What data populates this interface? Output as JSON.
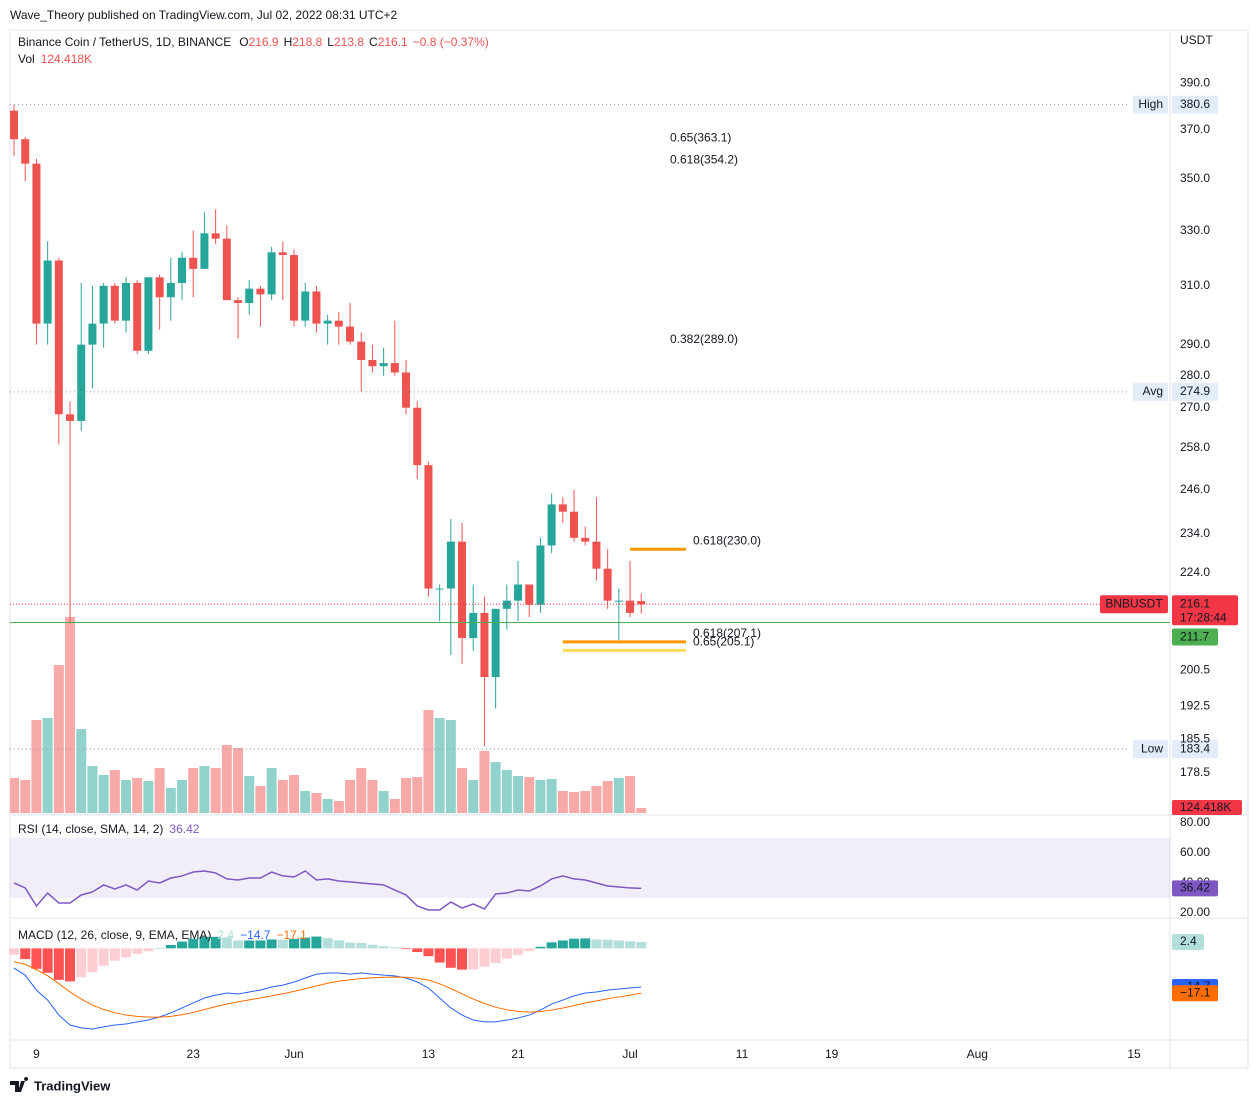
{
  "header": {
    "published": "Wave_Theory published on TradingView.com, Jul 02, 2022 08:31 UTC+2",
    "footer": "TradingView"
  },
  "chart_data": {
    "type": "candlestick",
    "title": "Binance Coin / TetherUS, 1D, BINANCE",
    "ohlc_labels": [
      "O",
      "H",
      "L",
      "C"
    ],
    "change": "−0.8 (−0.37%)",
    "currency": "USDT",
    "log_scale": true,
    "colors": {
      "up": "#26a69a",
      "down": "#ef5350",
      "up_volume": "#92d2cc",
      "down_volume": "#f7a9a7"
    },
    "xlim": [
      -0.36,
      103.21
    ],
    "xticks": [
      {
        "value": 2,
        "label": "9"
      },
      {
        "value": 16,
        "label": "23"
      },
      {
        "value": 25,
        "label": "Jun"
      },
      {
        "value": 37,
        "label": "13"
      },
      {
        "value": 45,
        "label": "21"
      },
      {
        "value": 55,
        "label": "Jul"
      },
      {
        "value": 65,
        "label": "11"
      },
      {
        "value": 73,
        "label": "19"
      },
      {
        "value": 86,
        "label": "Aug"
      },
      {
        "value": 100,
        "label": "15"
      }
    ],
    "ylim": [
      170.6,
      414.2
    ],
    "yticks": [
      {
        "value": 390,
        "label": "390.0"
      },
      {
        "value": 370,
        "label": "370.0"
      },
      {
        "value": 350,
        "label": "350.0"
      },
      {
        "value": 330,
        "label": "330.0"
      },
      {
        "value": 310,
        "label": "310.0"
      },
      {
        "value": 290,
        "label": "290.0"
      },
      {
        "value": 280,
        "label": "280.0"
      },
      {
        "value": 270,
        "label": "270.0"
      },
      {
        "value": 258,
        "label": "258.0"
      },
      {
        "value": 246,
        "label": "246.0"
      },
      {
        "value": 234,
        "label": "234.0"
      },
      {
        "value": 224,
        "label": "224.0"
      },
      200.5,
      192.5,
      185.5,
      178.5
    ],
    "open": [
      378,
      366,
      356,
      297,
      319,
      268,
      266,
      290,
      297,
      310,
      298,
      311,
      288,
      313,
      306,
      311,
      320,
      316,
      329,
      327,
      305,
      304,
      309,
      307,
      322,
      321,
      298,
      308,
      297,
      298,
      296,
      291,
      285,
      283,
      284,
      281,
      270,
      253,
      220,
      220,
      232,
      208,
      214,
      199,
      215,
      217,
      221,
      216,
      231,
      242,
      240,
      233,
      232,
      225,
      217,
      217,
      216.9
    ],
    "high": [
      380.6,
      367,
      358,
      326,
      320,
      272,
      311,
      310,
      311,
      311,
      313,
      312,
      313,
      314,
      320,
      322,
      330,
      337,
      338,
      332,
      306,
      312,
      310,
      324,
      326,
      323,
      311,
      310,
      300,
      301,
      304,
      294,
      290,
      289,
      298,
      285,
      272,
      254,
      221,
      238,
      237,
      221,
      218,
      215,
      221,
      227,
      221,
      233,
      245,
      244,
      246,
      236,
      244,
      230,
      220,
      227,
      218.8
    ],
    "low": [
      359,
      349,
      290,
      290,
      259,
      211.5,
      263,
      276,
      289,
      297,
      294,
      287,
      287,
      295,
      298,
      305,
      306,
      316,
      325,
      305,
      292,
      300,
      296,
      305,
      305,
      296,
      296,
      294,
      290,
      290,
      290,
      275,
      281,
      280,
      280,
      268,
      249,
      218,
      212,
      204,
      202,
      205,
      184,
      192,
      210,
      212,
      213,
      214,
      229,
      237,
      232,
      231,
      222,
      215,
      207,
      213,
      213.8
    ],
    "close": [
      366,
      356,
      297,
      319,
      268,
      266,
      290,
      297,
      310,
      298,
      311,
      288,
      313,
      306,
      311,
      320,
      316,
      329,
      327,
      305,
      304,
      309,
      307,
      322,
      321,
      298,
      308,
      297,
      298,
      296,
      291,
      285,
      283,
      284,
      281,
      270,
      253,
      220,
      220,
      232,
      208,
      214,
      199,
      215,
      217,
      221,
      216,
      231,
      242,
      240,
      233,
      232,
      225,
      217,
      217,
      214,
      216.1
    ],
    "levels": [
      {
        "name": "High",
        "value": 380.6
      },
      {
        "name": "Avg",
        "value": 274.9
      },
      {
        "name": "Low",
        "value": 183.4
      }
    ],
    "symbol": "BNBUSDT",
    "countdown": "17:28:44",
    "price_line": 211.7,
    "price_line_color": "#4caf50",
    "fib_labels": [
      {
        "label": "0.65(363.1)",
        "value": 363.1,
        "color": "#f9dc5c"
      },
      {
        "label": "0.618(354.2)",
        "value": 354.2,
        "color": "#ff9800"
      },
      {
        "label": "0.382(289.0)",
        "value": 289.0,
        "color": "#4caf50"
      }
    ],
    "fib_lines": [
      {
        "label": "0.618(230.0)",
        "value": 230.0,
        "color": "#ff9800",
        "x": [
          55,
          60
        ]
      },
      {
        "label": "0.618(207.1)",
        "value": 207.1,
        "color": "#ff9800",
        "x": [
          49,
          60
        ]
      },
      {
        "label": "0.65(205.1)",
        "value": 205.1,
        "color": "#f9dc5c",
        "x": [
          49,
          60
        ]
      }
    ],
    "volume": {
      "name": "Vol",
      "lim": [
        0,
        5225
      ],
      "last_label": "124.418K",
      "values": [
        875,
        825,
        2325,
        2375,
        3700,
        4900,
        2100,
        1175,
        950,
        1075,
        825,
        875,
        800,
        1125,
        625,
        825,
        1125,
        1175,
        1125,
        1700,
        1625,
        925,
        675,
        1125,
        825,
        950,
        550,
        500,
        350,
        300,
        825,
        1125,
        825,
        550,
        350,
        875,
        900,
        2575,
        2375,
        2325,
        1125,
        825,
        1550,
        1275,
        1075,
        925,
        900,
        825,
        850,
        550,
        525,
        550,
        675,
        800,
        875,
        925,
        124.418
      ]
    },
    "rsi": {
      "name": "RSI (14, close, SMA, 14, 2)",
      "color": "#7e57c2",
      "band": [
        30,
        70
      ],
      "ylim": [
        18,
        83.3
      ],
      "yticks": [
        {
          "value": 80,
          "label": "80.00"
        },
        {
          "value": 60,
          "label": "60.00"
        },
        {
          "value": 40,
          "label": "40.00"
        },
        {
          "value": 20,
          "label": "20.00"
        }
      ],
      "values": [
        40,
        36.7,
        24.7,
        33.3,
        26.7,
        26.7,
        32,
        34,
        38.7,
        36,
        38.7,
        35.3,
        41.3,
        40,
        43.3,
        44.7,
        47.3,
        48,
        46.7,
        42.7,
        42,
        43.3,
        43.3,
        47.3,
        44.7,
        44,
        48,
        42,
        42.7,
        41.3,
        40.7,
        40,
        39.3,
        38.7,
        35.3,
        32,
        24.7,
        22,
        22,
        27.3,
        23.3,
        26,
        22.7,
        32.7,
        33.3,
        35.3,
        34.7,
        38,
        42.7,
        44.7,
        42.7,
        42,
        40,
        38,
        37.3,
        36.7,
        36.42
      ]
    },
    "macd": {
      "name": "MACD (12, 26, close, 9, EMA, EMA)",
      "ylim": [
        -34.9,
        10.8
      ],
      "histogram": {
        "colors": [
          "#26a69a",
          "#b2dfdb",
          "#ffcdd2",
          "#ff5252"
        ],
        "values": [
          -2.4,
          -4.1,
          -7.8,
          -9.3,
          -12.0,
          -12.6,
          -11.0,
          -9.1,
          -6.6,
          -4.7,
          -3.4,
          -2.1,
          -1.1,
          0.1,
          1.3,
          2.6,
          3.6,
          4.4,
          4.4,
          4.2,
          3.0,
          3.0,
          3.0,
          3.4,
          3.3,
          3.6,
          4.1,
          4.5,
          3.9,
          3.1,
          2.2,
          2.1,
          1.4,
          0.8,
          0.4,
          -0.3,
          -1.4,
          -3.0,
          -5.4,
          -7.4,
          -8.1,
          -8.0,
          -7.0,
          -5.6,
          -3.9,
          -2.5,
          -1.1,
          0.6,
          2.3,
          3.0,
          3.7,
          3.8,
          3.4,
          3.3,
          3.0,
          2.7,
          2.4
        ]
      },
      "series": [
        {
          "color": "#2962ff",
          "last_label": "−14.7",
          "values": [
            -7.5,
            -10.2,
            -15.9,
            -19.7,
            -25.4,
            -29.2,
            -30.3,
            -30.7,
            -29.9,
            -29.2,
            -28.8,
            -28.0,
            -27.3,
            -26.1,
            -24.6,
            -22.7,
            -20.8,
            -18.9,
            -17.8,
            -17.0,
            -17.4,
            -16.6,
            -15.9,
            -14.7,
            -14.0,
            -12.8,
            -11.3,
            -9.8,
            -9.4,
            -9.4,
            -9.8,
            -9.4,
            -9.8,
            -10.2,
            -10.5,
            -11.3,
            -12.8,
            -15.1,
            -18.9,
            -22.7,
            -25.4,
            -27.3,
            -28.0,
            -28.0,
            -27.3,
            -26.5,
            -25.4,
            -23.5,
            -21.2,
            -19.7,
            -18.1,
            -17.0,
            -16.6,
            -15.9,
            -15.5,
            -15.1,
            -14.7
          ]
        },
        {
          "color": "#ff6d00",
          "last_label": "−17.1",
          "values": [
            -5.1,
            -6.1,
            -8.1,
            -10.4,
            -13.4,
            -16.6,
            -19.3,
            -21.6,
            -23.3,
            -24.5,
            -25.4,
            -25.9,
            -26.2,
            -26.2,
            -25.9,
            -25.3,
            -24.4,
            -23.3,
            -22.2,
            -21.2,
            -20.4,
            -19.6,
            -18.9,
            -18.1,
            -17.3,
            -16.4,
            -15.4,
            -14.3,
            -13.3,
            -12.5,
            -12.0,
            -11.5,
            -11.2,
            -11.0,
            -10.9,
            -11.0,
            -11.4,
            -12.1,
            -13.5,
            -15.3,
            -17.3,
            -19.3,
            -21.0,
            -22.4,
            -23.4,
            -24.0,
            -24.3,
            -24.1,
            -23.5,
            -22.7,
            -21.8,
            -20.8,
            -20.0,
            -19.2,
            -18.5,
            -17.8,
            -17.1
          ]
        }
      ]
    }
  }
}
